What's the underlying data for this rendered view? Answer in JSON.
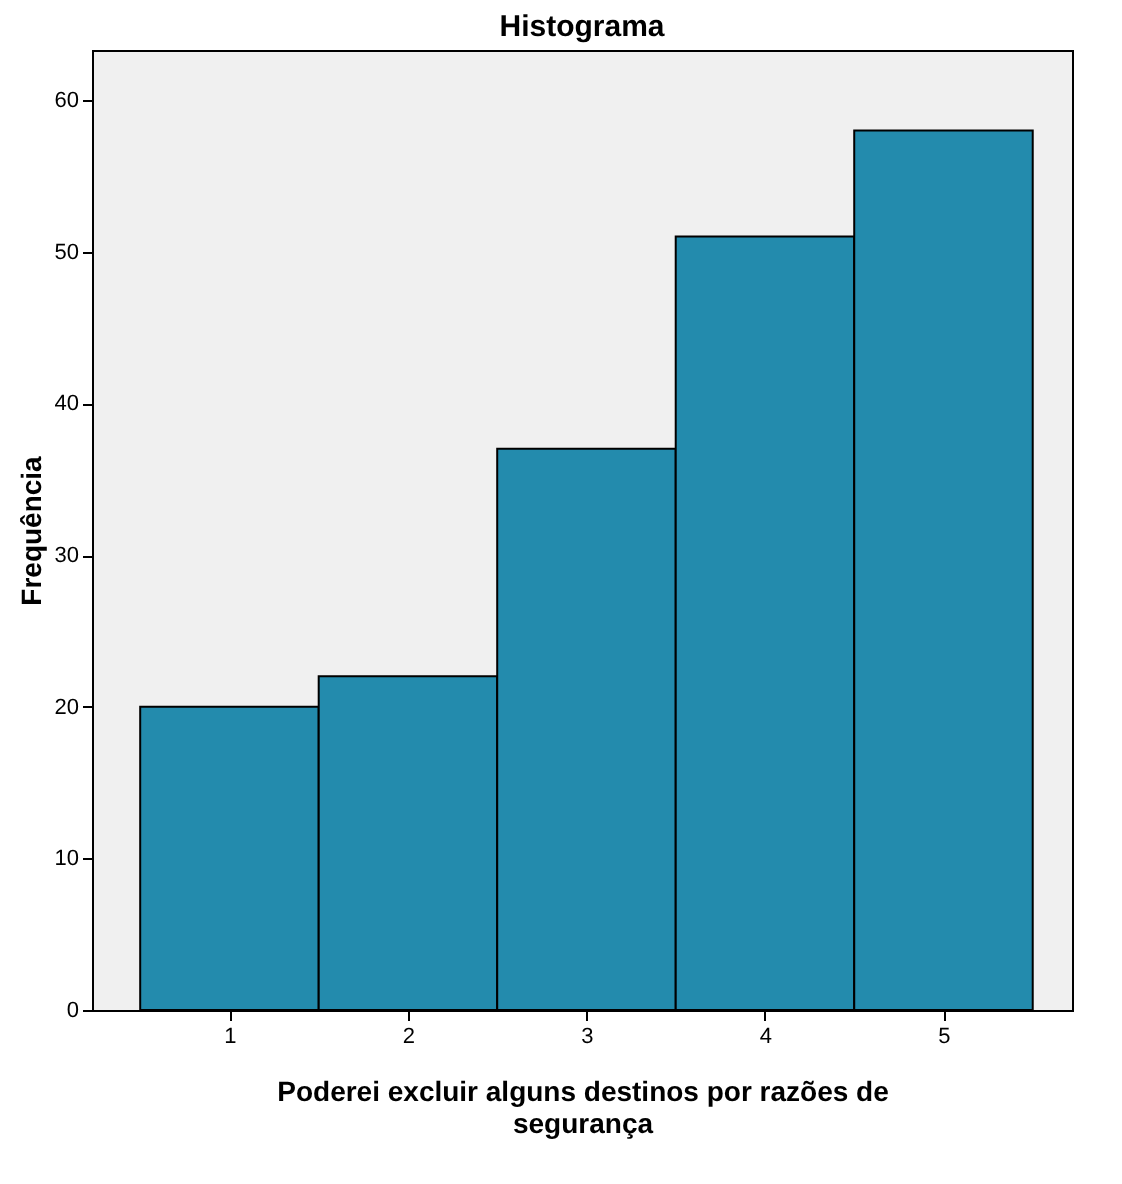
{
  "chart_data": {
    "type": "histogram",
    "title": "Histograma",
    "xlabel": "Poderei excluir alguns destinos por razões de segurança",
    "ylabel": "Frequência",
    "bins": [
      0.5,
      1.5,
      2.5,
      3.5,
      4.5,
      5.5
    ],
    "values": [
      20,
      22,
      37,
      51,
      58
    ],
    "color": "#238bad",
    "xlim": [
      0.23,
      5.72
    ],
    "xticks": [
      1,
      2,
      3,
      4,
      5
    ],
    "ylim": [
      0,
      63.3
    ],
    "yticks": [
      0,
      10,
      20,
      30,
      40,
      50,
      60
    ],
    "grid": false
  }
}
